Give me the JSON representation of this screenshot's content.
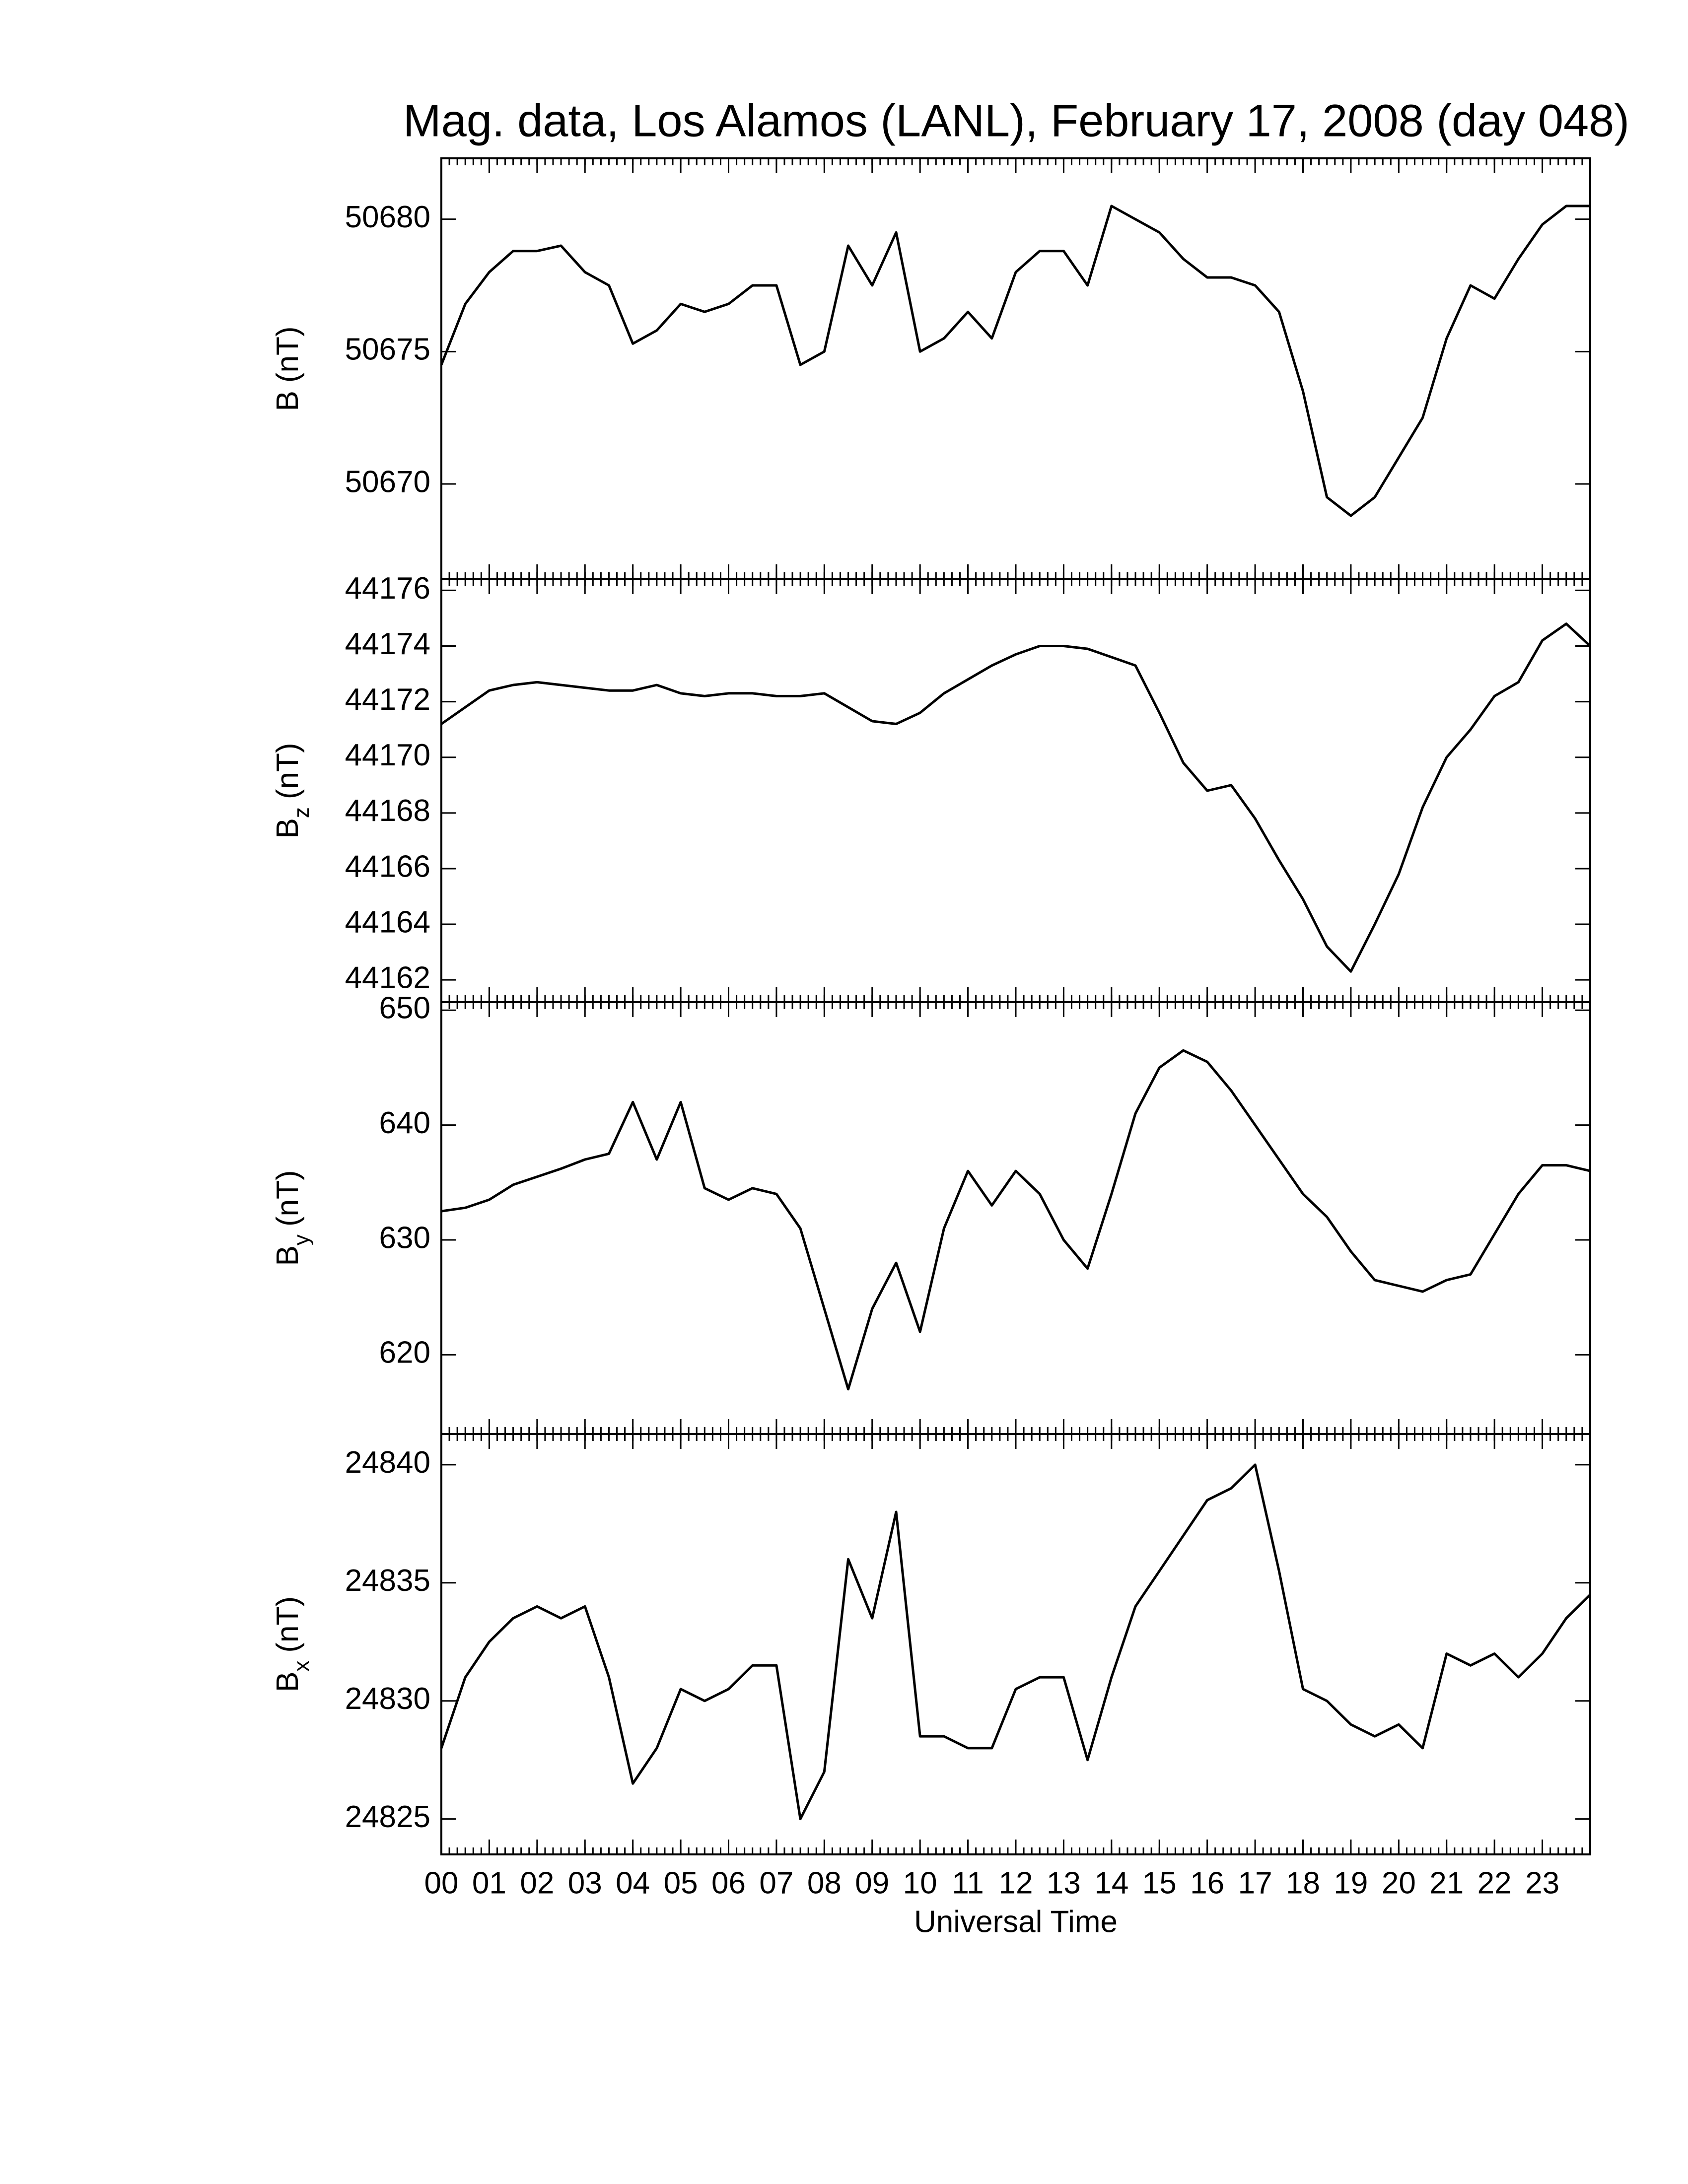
{
  "chart_data": [
    {
      "type": "line",
      "title": "Mag. data, Los Alamos (LANL), February 17, 2008 (day 048)",
      "ylabel": "B",
      "ylabel_units": "(nT)",
      "x": [
        0,
        0.5,
        1,
        1.5,
        2,
        2.5,
        3,
        3.5,
        4,
        4.5,
        5,
        5.5,
        6,
        6.5,
        7,
        7.5,
        8,
        8.5,
        9,
        9.5,
        10,
        10.5,
        11,
        11.5,
        12,
        12.5,
        13,
        13.5,
        14,
        14.5,
        15,
        15.5,
        16,
        16.5,
        17,
        17.5,
        18,
        18.5,
        19,
        19.5,
        20,
        20.5,
        21,
        21.5,
        22,
        22.5,
        23,
        23.5,
        24
      ],
      "values": [
        50674.5,
        50676.8,
        50678,
        50678.8,
        50678.8,
        50679,
        50678,
        50677.5,
        50675.3,
        50675.8,
        50676.8,
        50676.5,
        50676.8,
        50677.5,
        50677.5,
        50674.5,
        50675,
        50679,
        50677.5,
        50679.5,
        50675,
        50675.5,
        50676.5,
        50675.5,
        50678,
        50678.8,
        50678.8,
        50677.5,
        50680.5,
        50680,
        50679.5,
        50678.5,
        50677.8,
        50677.8,
        50677.5,
        50676.5,
        50673.5,
        50669.5,
        50668.8,
        50669.5,
        50671,
        50672.5,
        50675.5,
        50677.5,
        50677,
        50678.5,
        50679.8,
        50680.5,
        50680.5
      ],
      "color": "#000000",
      "xlim": [
        0,
        24
      ],
      "ylim": [
        50666.4,
        50682.3
      ],
      "yticks": [
        50670,
        50675,
        50680
      ]
    },
    {
      "type": "line",
      "ylabel": "B",
      "ylabel_subscript": "z",
      "ylabel_units": "(nT)",
      "x": [
        0,
        0.5,
        1,
        1.5,
        2,
        2.5,
        3,
        3.5,
        4,
        4.5,
        5,
        5.5,
        6,
        6.5,
        7,
        7.5,
        8,
        8.5,
        9,
        9.5,
        10,
        10.5,
        11,
        11.5,
        12,
        12.5,
        13,
        13.5,
        14,
        14.5,
        15,
        15.5,
        16,
        16.5,
        17,
        17.5,
        18,
        18.5,
        19,
        19.5,
        20,
        20.5,
        21,
        21.5,
        22,
        22.5,
        23,
        23.5,
        24
      ],
      "values": [
        44171.2,
        44171.8,
        44172.4,
        44172.6,
        44172.7,
        44172.6,
        44172.5,
        44172.4,
        44172.4,
        44172.6,
        44172.3,
        44172.2,
        44172.3,
        44172.3,
        44172.2,
        44172.2,
        44172.3,
        44171.8,
        44171.3,
        44171.2,
        44171.6,
        44172.3,
        44172.8,
        44173.3,
        44173.7,
        44174,
        44174,
        44173.9,
        44173.6,
        44173.3,
        44171.6,
        44169.8,
        44168.8,
        44169,
        44167.8,
        44166.3,
        44164.9,
        44163.2,
        44162.3,
        44164,
        44165.8,
        44168.2,
        44170,
        44171,
        44172.2,
        44172.7,
        44174.2,
        44174.8,
        44174
      ],
      "color": "#000000",
      "xlim": [
        0,
        24
      ],
      "ylim": [
        44161.2,
        44176.4
      ],
      "yticks": [
        44162,
        44164,
        44166,
        44168,
        44170,
        44172,
        44174,
        44176
      ]
    },
    {
      "type": "line",
      "ylabel": "B",
      "ylabel_subscript": "y",
      "ylabel_units": "(nT)",
      "x": [
        0,
        0.5,
        1,
        1.5,
        2,
        2.5,
        3,
        3.5,
        4,
        4.5,
        5,
        5.5,
        6,
        6.5,
        7,
        7.5,
        8,
        8.5,
        9,
        9.5,
        10,
        10.5,
        11,
        11.5,
        12,
        12.5,
        13,
        13.5,
        14,
        14.5,
        15,
        15.5,
        16,
        16.5,
        17,
        17.5,
        18,
        18.5,
        19,
        19.5,
        20,
        20.5,
        21,
        21.5,
        22,
        22.5,
        23,
        23.5,
        24
      ],
      "values": [
        632.5,
        632.8,
        633.5,
        634.8,
        635.5,
        636.2,
        637,
        637.5,
        642,
        637,
        642,
        634.5,
        633.5,
        634.5,
        634,
        631,
        624,
        617,
        624,
        628,
        622,
        631,
        636,
        633,
        636,
        634,
        630,
        627.5,
        634,
        641,
        645,
        646.5,
        645.5,
        643,
        640,
        637,
        634,
        632,
        629,
        626.5,
        626,
        625.5,
        626.5,
        627,
        630.5,
        634,
        636.5,
        636.5,
        636
      ],
      "color": "#000000",
      "xlim": [
        0,
        24
      ],
      "ylim": [
        613.1,
        650.7
      ],
      "yticks": [
        620,
        630,
        640,
        650
      ]
    },
    {
      "type": "line",
      "ylabel": "B",
      "ylabel_subscript": "x",
      "ylabel_units": "(nT)",
      "xlabel": "Universal Time",
      "x": [
        0,
        0.5,
        1,
        1.5,
        2,
        2.5,
        3,
        3.5,
        4,
        4.5,
        5,
        5.5,
        6,
        6.5,
        7,
        7.5,
        8,
        8.5,
        9,
        9.5,
        10,
        10.5,
        11,
        11.5,
        12,
        12.5,
        13,
        13.5,
        14,
        14.5,
        15,
        15.5,
        16,
        16.5,
        17,
        17.5,
        18,
        18.5,
        19,
        19.5,
        20,
        20.5,
        21,
        21.5,
        22,
        22.5,
        23,
        23.5,
        24
      ],
      "values": [
        24828,
        24831,
        24832.5,
        24833.5,
        24834,
        24833.5,
        24834,
        24831,
        24826.5,
        24828,
        24830.5,
        24830,
        24830.5,
        24831.5,
        24831.5,
        24825,
        24827,
        24836,
        24833.5,
        24838,
        24828.5,
        24828.5,
        24828,
        24828,
        24830.5,
        24831,
        24831,
        24827.5,
        24831,
        24834,
        24835.5,
        24837,
        24838.5,
        24839,
        24840,
        24835.5,
        24830.5,
        24830,
        24829,
        24828.5,
        24829,
        24828,
        24832,
        24831.5,
        24832,
        24831,
        24832,
        24833.5,
        24834.5
      ],
      "color": "#000000",
      "xlim": [
        0,
        24
      ],
      "ylim": [
        24823.5,
        24841.3
      ],
      "yticks": [
        24825,
        24830,
        24835,
        24840
      ],
      "xticks": [
        {
          "value": 0,
          "label": "00"
        },
        {
          "value": 1,
          "label": "01"
        },
        {
          "value": 2,
          "label": "02"
        },
        {
          "value": 3,
          "label": "03"
        },
        {
          "value": 4,
          "label": "04"
        },
        {
          "value": 5,
          "label": "05"
        },
        {
          "value": 6,
          "label": "06"
        },
        {
          "value": 7,
          "label": "07"
        },
        {
          "value": 8,
          "label": "08"
        },
        {
          "value": 9,
          "label": "09"
        },
        {
          "value": 10,
          "label": "10"
        },
        {
          "value": 11,
          "label": "11"
        },
        {
          "value": 12,
          "label": "12"
        },
        {
          "value": 13,
          "label": "13"
        },
        {
          "value": 14,
          "label": "14"
        },
        {
          "value": 15,
          "label": "15"
        },
        {
          "value": 16,
          "label": "16"
        },
        {
          "value": 17,
          "label": "17"
        },
        {
          "value": 18,
          "label": "18"
        },
        {
          "value": 19,
          "label": "19"
        },
        {
          "value": 20,
          "label": "20"
        },
        {
          "value": 21,
          "label": "21"
        },
        {
          "value": 22,
          "label": "22"
        },
        {
          "value": 23,
          "label": "23"
        }
      ]
    }
  ]
}
